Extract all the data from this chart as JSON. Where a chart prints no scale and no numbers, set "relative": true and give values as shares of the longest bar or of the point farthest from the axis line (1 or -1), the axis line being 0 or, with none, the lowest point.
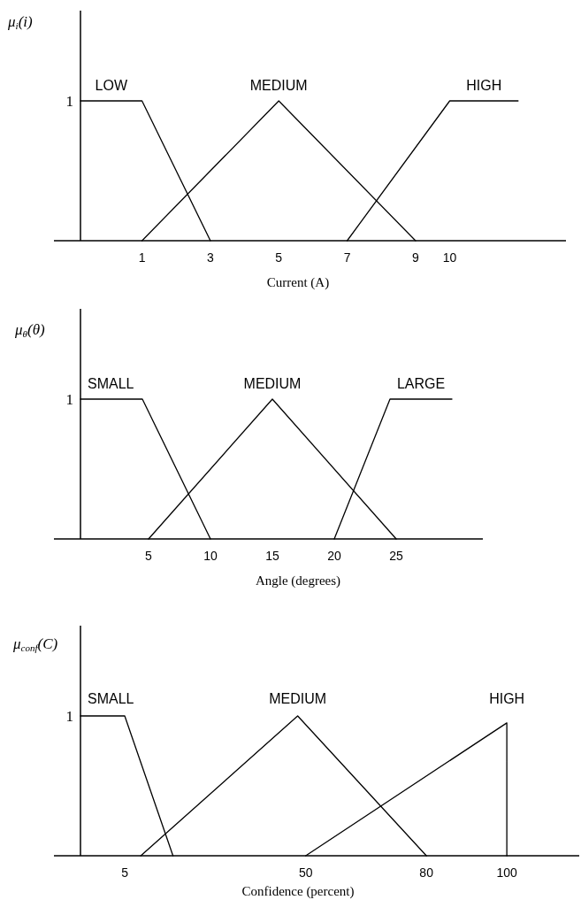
{
  "chart_data": [
    {
      "type": "line",
      "relative": true,
      "xlabel": "Current (A)",
      "ylabel": "μ$_{i}$(i)",
      "xlim": [
        -0.8,
        13.4
      ],
      "xticks": [
        1,
        3,
        5,
        7,
        9,
        10
      ],
      "annotations": [
        "1"
      ],
      "series": [
        {
          "name": "LOW",
          "color": "#000000",
          "x": [
            -0.8,
            1,
            3
          ],
          "values": [
            1,
            1,
            0
          ]
        },
        {
          "name": "MEDIUM",
          "color": "#000000",
          "x": [
            1,
            5,
            9
          ],
          "values": [
            0,
            1,
            0
          ]
        },
        {
          "name": "HIGH",
          "color": "#000000",
          "x": [
            7,
            10,
            12
          ],
          "values": [
            0,
            1,
            1
          ]
        }
      ]
    },
    {
      "type": "line",
      "relative": true,
      "xlabel": "Angle (degrees)",
      "ylabel": "μ$_{θ}$(θ)",
      "xlim": [
        -0.5,
        32
      ],
      "xticks": [
        5,
        10,
        15,
        20,
        25
      ],
      "annotations": [
        "1"
      ],
      "series": [
        {
          "name": "SMALL",
          "color": "#000000",
          "x": [
            -0.5,
            4.5,
            10
          ],
          "values": [
            1,
            1,
            0
          ]
        },
        {
          "name": "MEDIUM",
          "color": "#000000",
          "x": [
            5,
            15,
            25
          ],
          "values": [
            0,
            1,
            0
          ]
        },
        {
          "name": "LARGE",
          "color": "#000000",
          "x": [
            20,
            24.5,
            29.5
          ],
          "values": [
            0,
            1,
            1
          ]
        }
      ]
    },
    {
      "type": "line",
      "relative": true,
      "xlabel": "Confidence (percent)",
      "ylabel": "μ$_{conf}$(C)",
      "xlim": [
        -6,
        118
      ],
      "xticks": [
        5,
        50,
        80,
        100
      ],
      "annotations": [
        "1"
      ],
      "series": [
        {
          "name": "SMALL",
          "color": "#000000",
          "x": [
            -6,
            5,
            17
          ],
          "values": [
            1,
            1,
            0
          ]
        },
        {
          "name": "MEDIUM",
          "color": "#000000",
          "x": [
            9,
            48,
            80
          ],
          "values": [
            0,
            1,
            0
          ]
        },
        {
          "name": "HIGH",
          "color": "#000000",
          "x": [
            50,
            100,
            100
          ],
          "values": [
            0,
            0.95,
            0
          ]
        }
      ]
    }
  ]
}
